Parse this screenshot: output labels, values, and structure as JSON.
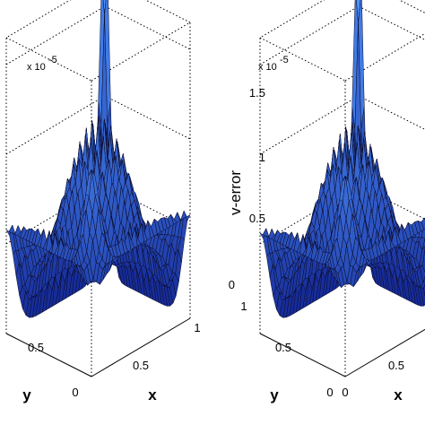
{
  "chart_data": [
    {
      "type": "surface",
      "zlabel": "",
      "xlabel": "x",
      "ylabel": "y",
      "z_multiplier": "x 10",
      "z_exponent": "-5",
      "x_ticks": [
        "0.5",
        "1"
      ],
      "y_ticks": [
        "0.5",
        "0"
      ],
      "z_ticks": [],
      "xlim": [
        0,
        1
      ],
      "ylim": [
        0,
        1
      ],
      "zlim": [
        0,
        1.6
      ],
      "grid": true,
      "peak_z": 1.65,
      "colormap": "blue"
    },
    {
      "type": "surface",
      "zlabel": "v-error",
      "xlabel": "x",
      "ylabel": "y",
      "z_multiplier": "x 10",
      "z_exponent": "-5",
      "x_ticks": [
        "0",
        "0.5"
      ],
      "y_ticks": [
        "1",
        "0.5",
        "0"
      ],
      "z_ticks": [
        "0",
        "0.5",
        "1",
        "1.5"
      ],
      "xlim": [
        0,
        1
      ],
      "ylim": [
        0,
        1
      ],
      "zlim": [
        0,
        1.6
      ],
      "grid": true,
      "peak_z": 1.6,
      "colormap": "blue"
    }
  ]
}
